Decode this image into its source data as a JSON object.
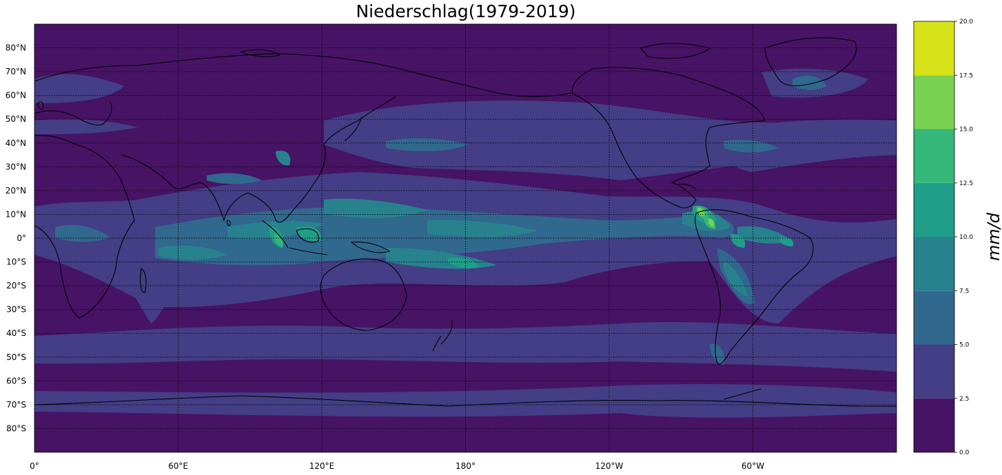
{
  "title": "Niederschlag(1979-2019)",
  "map": {
    "projection": "plate-carree",
    "central_longitude": 180,
    "lon_range": [
      0,
      360
    ],
    "lat_range": [
      -90,
      90
    ],
    "gridlines": "dotted",
    "coastlines": true,
    "lat_ticks": [
      {
        "value": 80,
        "label": "80°N"
      },
      {
        "value": 70,
        "label": "70°N"
      },
      {
        "value": 60,
        "label": "60°N"
      },
      {
        "value": 50,
        "label": "50°N"
      },
      {
        "value": 40,
        "label": "40°N"
      },
      {
        "value": 30,
        "label": "30°N"
      },
      {
        "value": 20,
        "label": "20°N"
      },
      {
        "value": 10,
        "label": "10°N"
      },
      {
        "value": 0,
        "label": "0°"
      },
      {
        "value": -10,
        "label": "10°S"
      },
      {
        "value": -20,
        "label": "20°S"
      },
      {
        "value": -30,
        "label": "30°S"
      },
      {
        "value": -40,
        "label": "40°S"
      },
      {
        "value": -50,
        "label": "50°S"
      },
      {
        "value": -60,
        "label": "60°S"
      },
      {
        "value": -70,
        "label": "70°S"
      },
      {
        "value": -80,
        "label": "80°S"
      }
    ],
    "lon_ticks": [
      {
        "value": 0,
        "label": "0°"
      },
      {
        "value": 60,
        "label": "60°E"
      },
      {
        "value": 120,
        "label": "120°E"
      },
      {
        "value": 180,
        "label": "180°"
      },
      {
        "value": 240,
        "label": "120°W"
      },
      {
        "value": 300,
        "label": "60°W"
      }
    ]
  },
  "colorbar": {
    "label": "mm/d",
    "levels": [
      0.0,
      2.5,
      5.0,
      7.5,
      10.0,
      12.5,
      15.0,
      17.5,
      20.0
    ],
    "tick_labels": [
      "0.0",
      "2.5",
      "5.0",
      "7.5",
      "10.0",
      "12.5",
      "15.0",
      "17.5",
      "20.0"
    ],
    "colors": [
      "#471365",
      "#433e85",
      "#31688e",
      "#27828d",
      "#1f9e89",
      "#35b779",
      "#7ad151",
      "#d8e219"
    ]
  }
}
